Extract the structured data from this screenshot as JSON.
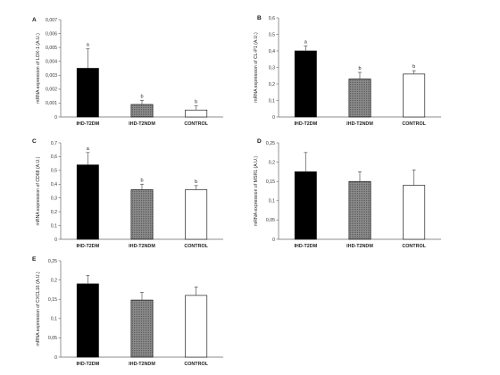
{
  "chart_data": [
    {
      "type": "bar",
      "panel_letter": "A",
      "ylabel": "mRNA expression of LOX-1 (A.U.)",
      "categories": [
        "IHD-T2DM",
        "IHD-T2NDM",
        "CONTROL"
      ],
      "values": [
        0.0035,
        0.0009,
        0.0005
      ],
      "errors": [
        0.0014,
        0.0003,
        0.0003
      ],
      "significance": [
        "a",
        "b",
        "b"
      ],
      "ylim": [
        0,
        0.007
      ],
      "yticks": [
        "0",
        "0,001",
        "0,002",
        "0,003",
        "0,004",
        "0,005",
        "0,006",
        "0,007"
      ],
      "bar_colors": [
        "#000000",
        "#808080",
        "#ffffff"
      ]
    },
    {
      "type": "bar",
      "panel_letter": "B",
      "ylabel": "mRNA expression of CL-P1 (A.U.)",
      "categories": [
        "IHD-T2DM",
        "IHD-T2NDM",
        "CONTROL"
      ],
      "values": [
        0.4,
        0.23,
        0.26
      ],
      "errors": [
        0.03,
        0.04,
        0.02
      ],
      "significance": [
        "a",
        "b",
        "b"
      ],
      "ylim": [
        0,
        0.6
      ],
      "yticks": [
        "0",
        "0,1",
        "0,2",
        "0,3",
        "0,4",
        "0,5",
        "0,6"
      ],
      "bar_colors": [
        "#000000",
        "#808080",
        "#ffffff"
      ]
    },
    {
      "type": "bar",
      "panel_letter": "C",
      "ylabel": "mRNA expression of CD68 (A.U.)",
      "categories": [
        "IHD-T2DM",
        "IHD-T2NDM",
        "CONTROL"
      ],
      "values": [
        0.54,
        0.36,
        0.36
      ],
      "errors": [
        0.09,
        0.04,
        0.03
      ],
      "significance": [
        "a",
        "b",
        "b"
      ],
      "ylim": [
        0,
        0.7
      ],
      "yticks": [
        "0",
        "0,1",
        "0,2",
        "0,3",
        "0,4",
        "0,5",
        "0,6",
        "0,7"
      ],
      "bar_colors": [
        "#000000",
        "#808080",
        "#ffffff"
      ]
    },
    {
      "type": "bar",
      "panel_letter": "D",
      "ylabel": "mRNA expression of MSR1 (A.U.)",
      "categories": [
        "IHD-T2DM",
        "IHD-T2NDM",
        "CONTROL"
      ],
      "values": [
        0.175,
        0.15,
        0.14
      ],
      "errors": [
        0.05,
        0.025,
        0.04
      ],
      "significance": [
        "",
        "",
        ""
      ],
      "ylim": [
        0,
        0.25
      ],
      "yticks": [
        "0",
        "0,05",
        "0,1",
        "0,15",
        "0,2",
        "0,25"
      ],
      "bar_colors": [
        "#000000",
        "#808080",
        "#ffffff"
      ]
    },
    {
      "type": "bar",
      "panel_letter": "E",
      "ylabel": "mRNA expression of CXCL16 (A.U.)",
      "categories": [
        "IHD-T2DM",
        "IHD-T2NDM",
        "CONTROL"
      ],
      "values": [
        0.19,
        0.148,
        0.16
      ],
      "errors": [
        0.022,
        0.02,
        0.022
      ],
      "significance": [
        "",
        "",
        ""
      ],
      "ylim": [
        0,
        0.25
      ],
      "yticks": [
        "0",
        "0,05",
        "0,1",
        "0,15",
        "0,2",
        "0,25"
      ],
      "bar_colors": [
        "#000000",
        "#808080",
        "#ffffff"
      ]
    }
  ]
}
